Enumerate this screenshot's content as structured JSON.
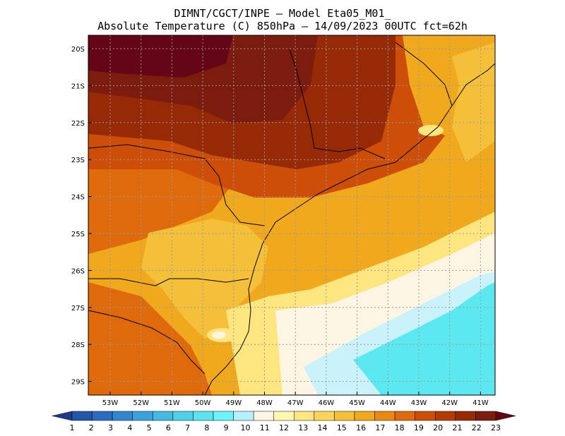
{
  "title_line1": "DIMNT/CGCT/INPE –  Model Eta05_M01_",
  "title_line2": "Absolute Temperature (C) 850hPa –  14/09/2023 00UTC fct=62h",
  "lat_labels": [
    "20S",
    "21S",
    "22S",
    "23S",
    "24S",
    "25S",
    "26S",
    "27S",
    "28S",
    "29S"
  ],
  "lon_labels": [
    "53W",
    "52W",
    "51W",
    "50W",
    "49W",
    "48W",
    "47W",
    "46W",
    "45W",
    "44W",
    "43W",
    "42W",
    "41W"
  ],
  "colorbar": {
    "labels": [
      "1",
      "2",
      "3",
      "4",
      "5",
      "6",
      "7",
      "8",
      "9",
      "10",
      "11",
      "12",
      "13",
      "14",
      "15",
      "16",
      "17",
      "18",
      "19",
      "20",
      "21",
      "22",
      "23"
    ],
    "colors": [
      "#1f3a8f",
      "#2355a8",
      "#2a6cc0",
      "#3286cf",
      "#3aa1db",
      "#44b9e3",
      "#4fd0ea",
      "#5ce3f0",
      "#6cf4f8",
      "#b4f2fb",
      "#fdf5e4",
      "#fff6b0",
      "#fde680",
      "#f9d45a",
      "#f4c03a",
      "#f0a81c",
      "#e88a12",
      "#de6a0c",
      "#cc4e08",
      "#b43a06",
      "#962a06",
      "#7c1c0e",
      "#650616"
    ]
  },
  "map_regions": {
    "ocean_cold": "#5ce8f0",
    "ocean_cool": "#c9f2fa",
    "ocean_mild": "#fdf5e4",
    "coast_yellow": "#fde680",
    "light_orange": "#f4c03a",
    "orange": "#f0a81c",
    "dark_orange": "#de6a0c",
    "red_orange": "#cc4e08",
    "brown_red": "#962a06",
    "maroon": "#7c1c0e",
    "deep_maroon": "#650616"
  }
}
